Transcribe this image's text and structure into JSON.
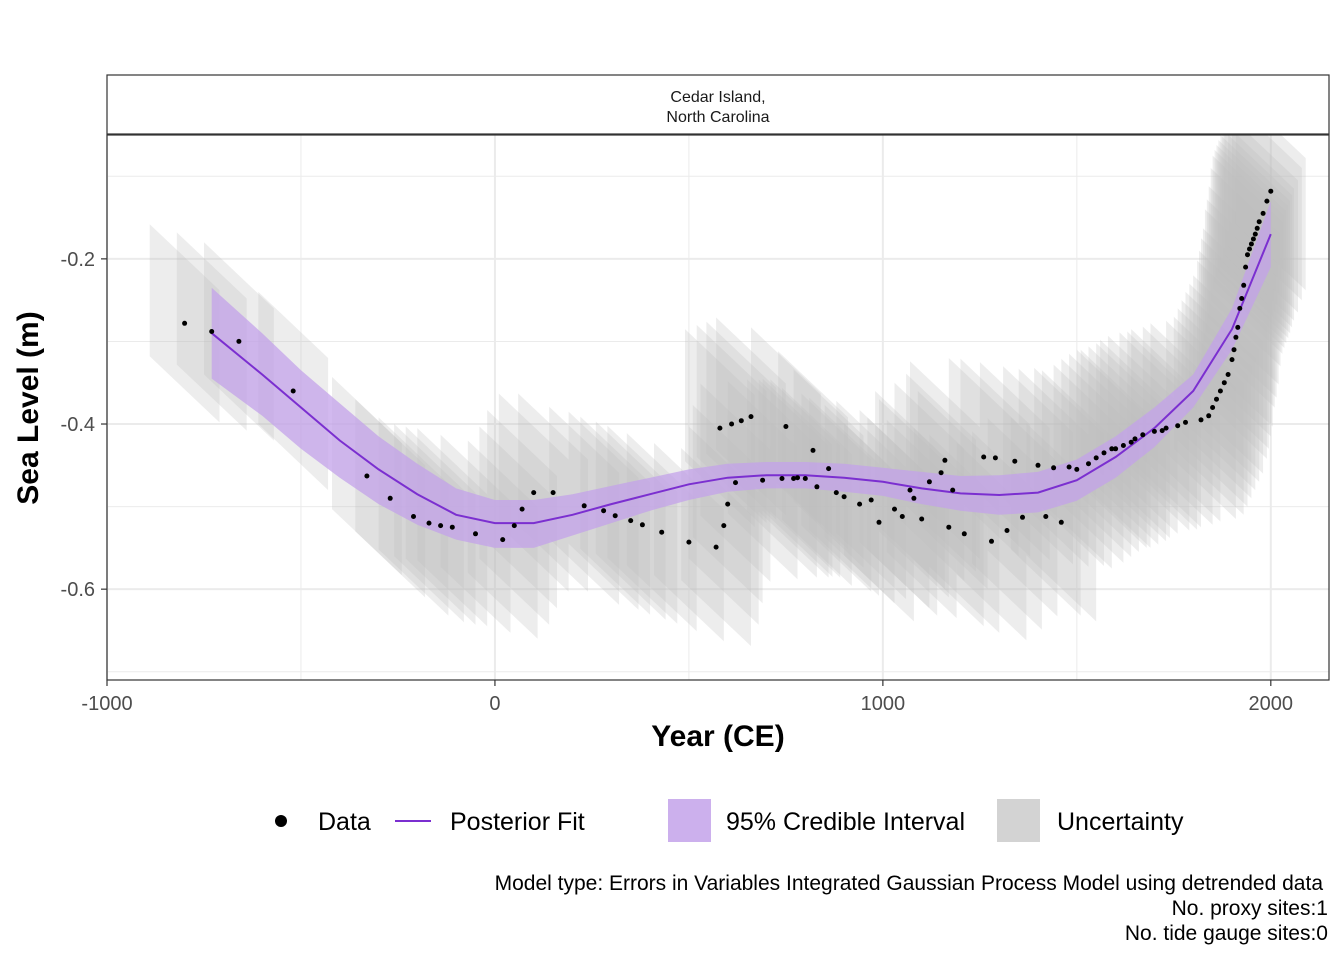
{
  "chart_data": {
    "type": "scatter",
    "panel_title_line1": "Cedar Island,",
    "panel_title_line2": "North Carolina",
    "xlabel": "Year (CE)",
    "ylabel": "Sea Level (m)",
    "xlim": [
      -1000,
      2150
    ],
    "ylim": [
      -0.71,
      -0.05
    ],
    "x_ticks": [
      -1000,
      0,
      1000,
      2000
    ],
    "y_ticks": [
      -0.6,
      -0.4,
      -0.2
    ],
    "x_tick_labels": [
      "-1000",
      "0",
      "1000",
      "2000"
    ],
    "y_tick_labels": [
      "-0.6",
      "-0.4",
      "-0.2"
    ],
    "uncertainty": {
      "x_half": 90,
      "y_half": 0.08
    },
    "colors": {
      "data": "#000000",
      "fit": "#7b2fd0",
      "credible": "#c3a2ea",
      "uncertainty": "#bdbdbd",
      "grid": "#ebebeb"
    },
    "legend": {
      "data": "Data",
      "fit": "Posterior Fit",
      "credible": "95% Credible Interval",
      "uncertainty": "Uncertainty"
    },
    "caption": [
      "Model type: Errors in Variables Integrated Gaussian Process Model using detrended data",
      "No. proxy sites:1",
      "No. tide gauge sites:0"
    ],
    "posterior_fit": {
      "x": [
        -730,
        -600,
        -500,
        -400,
        -300,
        -200,
        -100,
        0,
        100,
        200,
        300,
        400,
        500,
        600,
        700,
        800,
        900,
        1000,
        1100,
        1200,
        1300,
        1400,
        1500,
        1600,
        1700,
        1800,
        1900,
        2000
      ],
      "y": [
        -0.29,
        -0.34,
        -0.38,
        -0.42,
        -0.455,
        -0.485,
        -0.51,
        -0.52,
        -0.52,
        -0.51,
        -0.497,
        -0.485,
        -0.473,
        -0.465,
        -0.462,
        -0.462,
        -0.465,
        -0.47,
        -0.478,
        -0.484,
        -0.486,
        -0.483,
        -0.468,
        -0.44,
        -0.405,
        -0.36,
        -0.285,
        -0.17
      ]
    },
    "credible_interval": {
      "lower": [
        -0.345,
        -0.39,
        -0.43,
        -0.465,
        -0.497,
        -0.522,
        -0.54,
        -0.55,
        -0.55,
        -0.535,
        -0.52,
        -0.505,
        -0.492,
        -0.482,
        -0.478,
        -0.478,
        -0.482,
        -0.487,
        -0.497,
        -0.505,
        -0.51,
        -0.507,
        -0.493,
        -0.465,
        -0.428,
        -0.38,
        -0.31,
        -0.21
      ],
      "upper": [
        -0.235,
        -0.29,
        -0.335,
        -0.375,
        -0.415,
        -0.448,
        -0.478,
        -0.492,
        -0.492,
        -0.485,
        -0.475,
        -0.465,
        -0.455,
        -0.448,
        -0.446,
        -0.446,
        -0.448,
        -0.453,
        -0.458,
        -0.463,
        -0.462,
        -0.458,
        -0.443,
        -0.415,
        -0.38,
        -0.34,
        -0.26,
        -0.13
      ]
    },
    "points": {
      "x": [
        -800,
        -730,
        -660,
        -520,
        -330,
        -270,
        -210,
        -170,
        -140,
        -110,
        -50,
        20,
        50,
        70,
        100,
        150,
        230,
        280,
        310,
        350,
        380,
        430,
        500,
        570,
        580,
        590,
        600,
        610,
        620,
        635,
        660,
        690,
        740,
        750,
        770,
        780,
        800,
        820,
        830,
        860,
        880,
        900,
        940,
        970,
        990,
        1030,
        1050,
        1070,
        1080,
        1100,
        1120,
        1150,
        1160,
        1170,
        1180,
        1210,
        1260,
        1280,
        1290,
        1320,
        1340,
        1360,
        1400,
        1420,
        1440,
        1460,
        1480,
        1500,
        1530,
        1550,
        1570,
        1590,
        1600,
        1620,
        1640,
        1650,
        1670,
        1700,
        1720,
        1730,
        1760,
        1780,
        1820,
        1840,
        1850,
        1860,
        1870,
        1880,
        1890,
        1900,
        1905,
        1910,
        1915,
        1920,
        1925,
        1930,
        1935,
        1940,
        1945,
        1950,
        1955,
        1960,
        1965,
        1970,
        1980,
        1990,
        2000
      ],
      "y": [
        -0.278,
        -0.288,
        -0.3,
        -0.36,
        -0.463,
        -0.49,
        -0.512,
        -0.52,
        -0.523,
        -0.525,
        -0.533,
        -0.54,
        -0.523,
        -0.503,
        -0.483,
        -0.483,
        -0.499,
        -0.505,
        -0.511,
        -0.517,
        -0.522,
        -0.531,
        -0.543,
        -0.549,
        -0.405,
        -0.523,
        -0.497,
        -0.4,
        -0.471,
        -0.396,
        -0.391,
        -0.468,
        -0.466,
        -0.403,
        -0.466,
        -0.465,
        -0.466,
        -0.432,
        -0.476,
        -0.454,
        -0.483,
        -0.488,
        -0.497,
        -0.492,
        -0.519,
        -0.503,
        -0.512,
        -0.48,
        -0.49,
        -0.515,
        -0.47,
        -0.459,
        -0.444,
        -0.525,
        -0.48,
        -0.533,
        -0.44,
        -0.542,
        -0.441,
        -0.529,
        -0.445,
        -0.513,
        -0.45,
        -0.512,
        -0.453,
        -0.519,
        -0.452,
        -0.455,
        -0.448,
        -0.441,
        -0.435,
        -0.43,
        -0.43,
        -0.426,
        -0.422,
        -0.418,
        -0.413,
        -0.409,
        -0.408,
        -0.405,
        -0.402,
        -0.398,
        -0.395,
        -0.39,
        -0.38,
        -0.37,
        -0.36,
        -0.35,
        -0.34,
        -0.322,
        -0.31,
        -0.295,
        -0.283,
        -0.26,
        -0.248,
        -0.232,
        -0.21,
        -0.195,
        -0.188,
        -0.182,
        -0.176,
        -0.17,
        -0.163,
        -0.155,
        -0.145,
        -0.13,
        -0.118
      ]
    }
  }
}
